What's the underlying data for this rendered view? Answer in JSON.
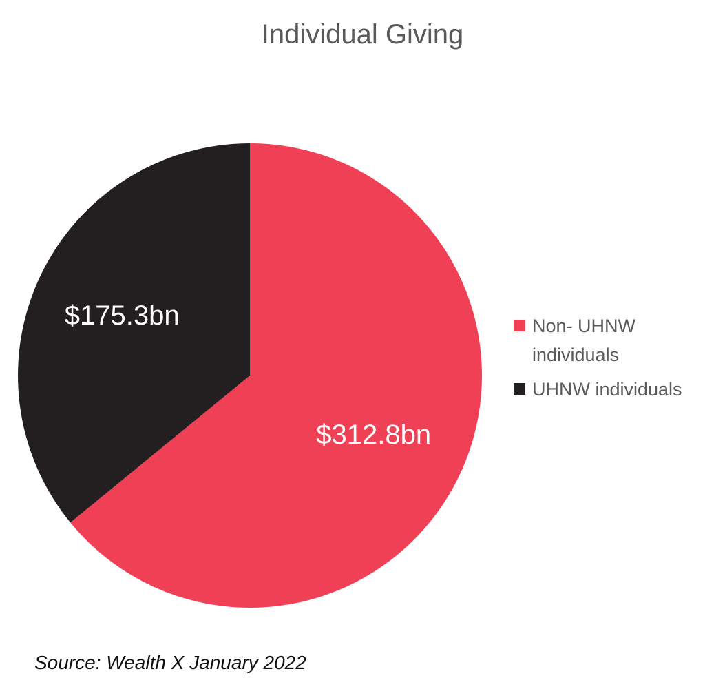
{
  "chart_data": {
    "type": "pie",
    "title": "Individual Giving",
    "slices": [
      {
        "label": "Non- UHNW individuals",
        "value": 312.8,
        "display": "$312.8bn",
        "color": "#EF4056"
      },
      {
        "label": "UHNW individuals",
        "value": 175.3,
        "display": "$175.3bn",
        "color": "#231F20"
      }
    ],
    "legend_position": "right",
    "start_angle": "top (12 o'clock), clockwise"
  },
  "source": "Source: Wealth X January 2022"
}
